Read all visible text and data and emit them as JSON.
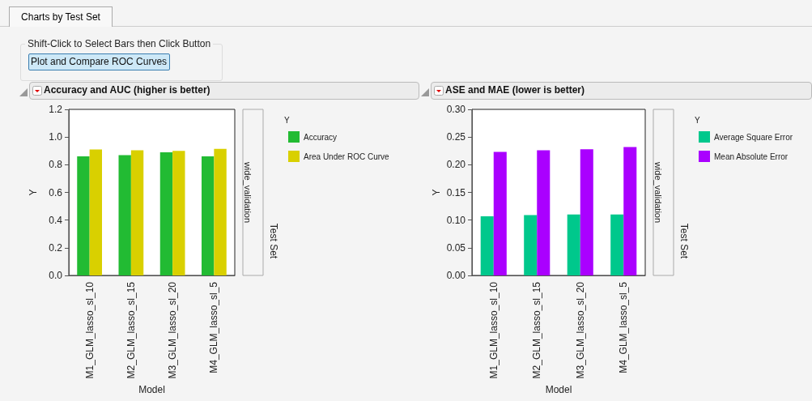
{
  "chart_data": [
    {
      "type": "bar",
      "title": "Accuracy and AUC (higher is better)",
      "xlabel": "Model",
      "ylabel": "Y",
      "y2label": "Test Set",
      "legend_title": "Y",
      "legend": "right",
      "grid": false,
      "annotations": [
        "Charts by Test Set",
        "Shift-Click to Select Bars then Click Button",
        "Plot and Compare ROC Curves",
        "wide_validation"
      ],
      "categories": [
        "M1_GLM_lasso_sl_10",
        "M2_GLM_lasso_sl_15",
        "M3_GLM_lasso_sl_20",
        "M4_GLM_lasso_sl_5"
      ],
      "series": [
        {
          "name": "Accuracy",
          "color": "#22bb33",
          "values": [
            0.86,
            0.87,
            0.89,
            0.86
          ]
        },
        {
          "name": "Area Under ROC Curve",
          "color": "#d9d000",
          "values": [
            0.91,
            0.905,
            0.9,
            0.915
          ]
        }
      ],
      "ylim": [
        0,
        1.2
      ],
      "yticks": [
        {
          "value": 0,
          "label": "0.0"
        },
        {
          "value": 0.2,
          "label": "0.2"
        },
        {
          "value": 0.4,
          "label": "0.4"
        },
        {
          "value": 0.6,
          "label": "0.6"
        },
        {
          "value": 0.8,
          "label": "0.8"
        },
        {
          "value": 1,
          "label": "1.0"
        },
        {
          "value": 1.2,
          "label": "1.2"
        }
      ]
    },
    {
      "type": "bar",
      "title": "ASE and MAE (lower is better)",
      "xlabel": "Model",
      "ylabel": "Y",
      "y2label": "Test Set",
      "legend_title": "Y",
      "legend": "right",
      "grid": false,
      "annotations": [
        "wide_validation"
      ],
      "categories": [
        "M1_GLM_lasso_sl_10",
        "M2_GLM_lasso_sl_15",
        "M3_GLM_lasso_sl_20",
        "M4_GLM_lasso_sl_5"
      ],
      "series": [
        {
          "name": "Average Square Error",
          "color": "#00c88c",
          "values": [
            0.107,
            0.109,
            0.11,
            0.11
          ]
        },
        {
          "name": "Mean Absolute Error",
          "color": "#aa00ff",
          "values": [
            0.223,
            0.226,
            0.228,
            0.232
          ]
        }
      ],
      "ylim": [
        0,
        0.3
      ],
      "yticks": [
        {
          "value": 0,
          "label": "0.00"
        },
        {
          "value": 0.05,
          "label": "0.05"
        },
        {
          "value": 0.1,
          "label": "0.10"
        },
        {
          "value": 0.15,
          "label": "0.15"
        },
        {
          "value": 0.2,
          "label": "0.20"
        },
        {
          "value": 0.25,
          "label": "0.25"
        },
        {
          "value": 0.3,
          "label": "0.30"
        }
      ]
    }
  ]
}
